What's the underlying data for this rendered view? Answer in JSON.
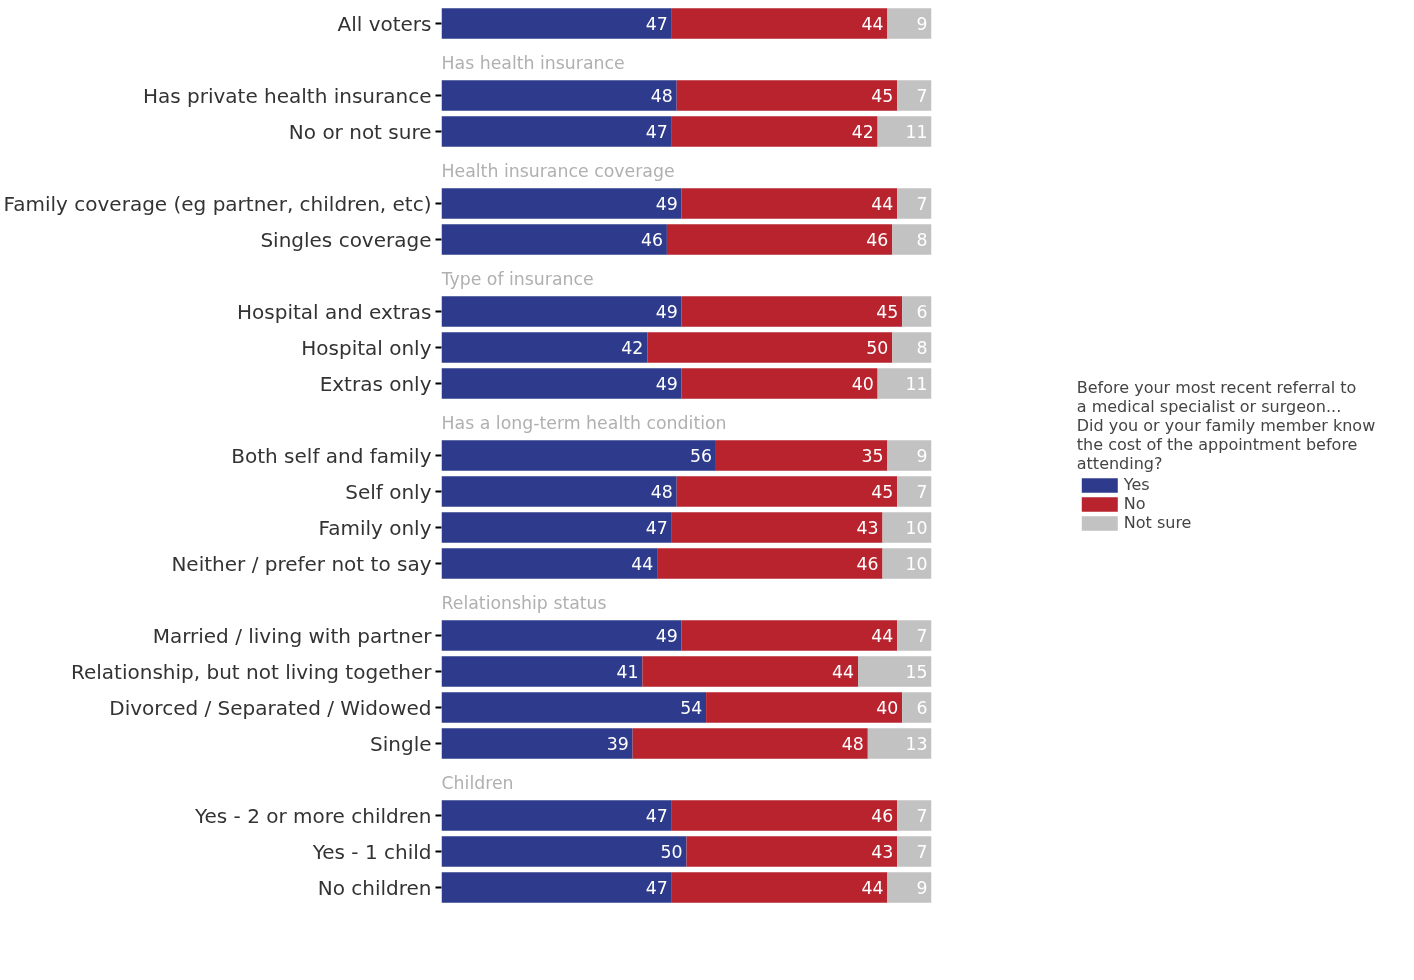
{
  "chart_data": {
    "type": "bar",
    "orientation": "horizontal",
    "stacked": true,
    "data_labels": true,
    "tick_labels": "y",
    "grid": false,
    "legend": "right",
    "xlim": [
      0,
      100
    ],
    "legend_title": "Before your most recent referral to a medical specialist or surgeon... Did you or your family member know the cost of the appointment before attending?",
    "categories": [
      "All voters",
      null,
      "Has private health insurance",
      "No or not sure",
      null,
      "Family coverage (eg partner, children, etc)",
      "Singles coverage",
      null,
      "Hospital and extras",
      "Hospital only",
      "Extras only",
      null,
      "Both self and family",
      "Self only",
      "Family only",
      "Neither / prefer not to say",
      null,
      "Married / living with partner",
      "Relationship, but not living together",
      "Divorced / Separated / Widowed",
      "Single",
      null,
      "Yes - 2 or more children",
      "Yes - 1 child",
      "No children"
    ],
    "annotations": [
      "Has health insurance",
      "Health insurance coverage",
      "Type of insurance",
      "Has a long-term health condition",
      "Relationship status",
      "Children"
    ],
    "series": [
      {
        "name": "Yes",
        "color": "#2e3b8c",
        "values": [
          47,
          null,
          48,
          47,
          null,
          49,
          46,
          null,
          49,
          42,
          49,
          null,
          56,
          48,
          47,
          44,
          null,
          49,
          41,
          54,
          39,
          null,
          47,
          50,
          47
        ]
      },
      {
        "name": "No",
        "color": "#b8232e",
        "values": [
          44,
          null,
          45,
          42,
          null,
          44,
          46,
          null,
          45,
          50,
          40,
          null,
          35,
          45,
          43,
          46,
          null,
          44,
          44,
          40,
          48,
          null,
          46,
          43,
          44
        ]
      },
      {
        "name": "Not sure",
        "color": "#c2c2c2",
        "values": [
          9,
          null,
          7,
          11,
          null,
          7,
          8,
          null,
          6,
          8,
          11,
          null,
          9,
          7,
          10,
          10,
          null,
          7,
          15,
          6,
          13,
          null,
          7,
          7,
          9
        ]
      }
    ]
  }
}
